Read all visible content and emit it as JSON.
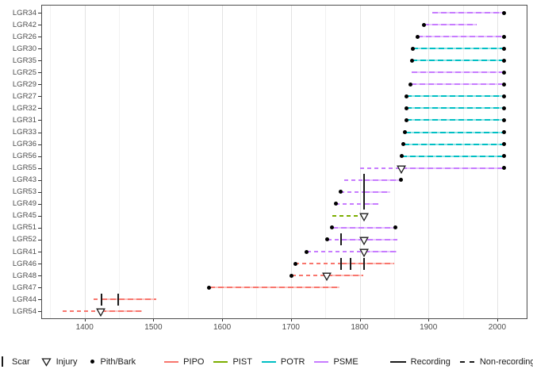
{
  "chart_data": {
    "type": "line",
    "subtype": "fire-history-demography-timeline",
    "title": "",
    "xlabel": "",
    "ylabel": "",
    "x_ticks": [
      1400,
      1500,
      1600,
      1700,
      1800,
      1900,
      2000
    ],
    "x_minor_ticks": [
      1350,
      1450,
      1550,
      1650,
      1750,
      1850,
      1950
    ],
    "xlim": [
      1337,
      2044
    ],
    "grid": true,
    "legend_position": "bottom",
    "species_colors": {
      "PIPO": "#F8766D",
      "PIST": "#7CAE00",
      "POTR": "#00BFC4",
      "PSME": "#C77CFF"
    },
    "marker_color": "#000000",
    "series": [
      {
        "id": "LGR34",
        "species": "PSME",
        "segments": [
          {
            "type": "recording",
            "start": 1905,
            "end": 2010
          }
        ],
        "pith": null,
        "bark": 2010,
        "scars": [],
        "injuries": []
      },
      {
        "id": "LGR42",
        "species": "PSME",
        "segments": [
          {
            "type": "recording",
            "start": 1893,
            "end": 1970
          }
        ],
        "pith": 1893,
        "bark": null,
        "scars": [],
        "injuries": []
      },
      {
        "id": "LGR26",
        "species": "PSME",
        "segments": [
          {
            "type": "recording",
            "start": 1884,
            "end": 2010
          }
        ],
        "pith": 1884,
        "bark": 2010,
        "scars": [],
        "injuries": []
      },
      {
        "id": "LGR30",
        "species": "POTR",
        "segments": [
          {
            "type": "recording",
            "start": 1877,
            "end": 2010
          }
        ],
        "pith": 1877,
        "bark": 2010,
        "scars": [],
        "injuries": []
      },
      {
        "id": "LGR35",
        "species": "POTR",
        "segments": [
          {
            "type": "recording",
            "start": 1876,
            "end": 2010
          }
        ],
        "pith": 1876,
        "bark": 2010,
        "scars": [],
        "injuries": []
      },
      {
        "id": "LGR25",
        "species": "PSME",
        "segments": [
          {
            "type": "recording",
            "start": 1876,
            "end": 2010
          }
        ],
        "pith": null,
        "bark": 2010,
        "scars": [],
        "injuries": []
      },
      {
        "id": "LGR29",
        "species": "PSME",
        "segments": [
          {
            "type": "recording",
            "start": 1874,
            "end": 2010
          }
        ],
        "pith": 1874,
        "bark": 2010,
        "scars": [],
        "injuries": []
      },
      {
        "id": "LGR27",
        "species": "POTR",
        "segments": [
          {
            "type": "recording",
            "start": 1868,
            "end": 2010
          }
        ],
        "pith": 1868,
        "bark": 2010,
        "scars": [],
        "injuries": []
      },
      {
        "id": "LGR32",
        "species": "POTR",
        "segments": [
          {
            "type": "recording",
            "start": 1868,
            "end": 2010
          }
        ],
        "pith": 1868,
        "bark": 2010,
        "scars": [],
        "injuries": []
      },
      {
        "id": "LGR31",
        "species": "POTR",
        "segments": [
          {
            "type": "recording",
            "start": 1868,
            "end": 2010
          }
        ],
        "pith": 1868,
        "bark": 2010,
        "scars": [],
        "injuries": []
      },
      {
        "id": "LGR33",
        "species": "POTR",
        "segments": [
          {
            "type": "recording",
            "start": 1866,
            "end": 2010
          }
        ],
        "pith": 1866,
        "bark": 2010,
        "scars": [],
        "injuries": []
      },
      {
        "id": "LGR36",
        "species": "POTR",
        "segments": [
          {
            "type": "recording",
            "start": 1864,
            "end": 2010
          }
        ],
        "pith": 1864,
        "bark": 2010,
        "scars": [],
        "injuries": []
      },
      {
        "id": "LGR56",
        "species": "POTR",
        "segments": [
          {
            "type": "recording",
            "start": 1861,
            "end": 2010
          }
        ],
        "pith": 1861,
        "bark": 2010,
        "scars": [],
        "injuries": []
      },
      {
        "id": "LGR55",
        "species": "PSME",
        "segments": [
          {
            "type": "non-recording",
            "start": 1800,
            "end": 1860
          },
          {
            "type": "recording",
            "start": 1860,
            "end": 2010
          }
        ],
        "pith": null,
        "bark": 2010,
        "scars": [],
        "injuries": [
          1860
        ]
      },
      {
        "id": "LGR43",
        "species": "PSME",
        "segments": [
          {
            "type": "non-recording",
            "start": 1777,
            "end": 1806
          },
          {
            "type": "recording",
            "start": 1806,
            "end": 1860
          }
        ],
        "pith": null,
        "bark": 1860,
        "scars": [
          1806
        ],
        "injuries": []
      },
      {
        "id": "LGR53",
        "species": "PSME",
        "segments": [
          {
            "type": "non-recording",
            "start": 1772,
            "end": 1806
          },
          {
            "type": "recording",
            "start": 1806,
            "end": 1844
          }
        ],
        "pith": 1772,
        "bark": null,
        "scars": [
          1806
        ],
        "injuries": []
      },
      {
        "id": "LGR49",
        "species": "PSME",
        "segments": [
          {
            "type": "non-recording",
            "start": 1765,
            "end": 1806
          },
          {
            "type": "recording",
            "start": 1806,
            "end": 1827
          }
        ],
        "pith": 1765,
        "bark": null,
        "scars": [
          1806
        ],
        "injuries": []
      },
      {
        "id": "LGR45",
        "species": "PIST",
        "segments": [
          {
            "type": "non-recording",
            "start": 1760,
            "end": 1806
          }
        ],
        "pith": null,
        "bark": null,
        "scars": [],
        "injuries": [
          1806
        ]
      },
      {
        "id": "LGR51",
        "species": "PSME",
        "segments": [
          {
            "type": "recording",
            "start": 1760,
            "end": 1852
          }
        ],
        "pith": 1760,
        "bark": 1852,
        "scars": [],
        "injuries": []
      },
      {
        "id": "LGR52",
        "species": "PSME",
        "segments": [
          {
            "type": "non-recording",
            "start": 1753,
            "end": 1773
          },
          {
            "type": "recording",
            "start": 1773,
            "end": 1855
          }
        ],
        "pith": 1753,
        "bark": null,
        "scars": [
          1773
        ],
        "injuries": [
          1806
        ]
      },
      {
        "id": "LGR41",
        "species": "PSME",
        "segments": [
          {
            "type": "non-recording",
            "start": 1723,
            "end": 1806
          },
          {
            "type": "recording",
            "start": 1806,
            "end": 1854
          }
        ],
        "pith": 1723,
        "bark": null,
        "scars": [],
        "injuries": [
          1806
        ]
      },
      {
        "id": "LGR46",
        "species": "PIPO",
        "segments": [
          {
            "type": "non-recording",
            "start": 1706,
            "end": 1773
          },
          {
            "type": "recording",
            "start": 1773,
            "end": 1850
          }
        ],
        "pith": 1706,
        "bark": null,
        "scars": [
          1773,
          1787,
          1806
        ],
        "injuries": []
      },
      {
        "id": "LGR48",
        "species": "PIPO",
        "segments": [
          {
            "type": "non-recording",
            "start": 1701,
            "end": 1752
          },
          {
            "type": "recording",
            "start": 1752,
            "end": 1805
          }
        ],
        "pith": 1701,
        "bark": null,
        "scars": [],
        "injuries": [
          1752
        ]
      },
      {
        "id": "LGR47",
        "species": "PIPO",
        "segments": [
          {
            "type": "recording",
            "start": 1581,
            "end": 1771
          }
        ],
        "pith": 1581,
        "bark": null,
        "scars": [],
        "injuries": []
      },
      {
        "id": "LGR44",
        "species": "PIPO",
        "segments": [
          {
            "type": "non-recording",
            "start": 1413,
            "end": 1425
          },
          {
            "type": "recording",
            "start": 1425,
            "end": 1504
          }
        ],
        "pith": null,
        "bark": null,
        "scars": [
          1425,
          1449
        ],
        "injuries": []
      },
      {
        "id": "LGR54",
        "species": "PIPO",
        "segments": [
          {
            "type": "non-recording",
            "start": 1368,
            "end": 1423
          },
          {
            "type": "recording",
            "start": 1423,
            "end": 1483
          }
        ],
        "pith": null,
        "bark": null,
        "scars": [],
        "injuries": [
          1423
        ]
      }
    ],
    "legend": {
      "shape_items": [
        {
          "label": "Scar",
          "symbol": "scar-tick"
        },
        {
          "label": "Injury",
          "symbol": "triangle-down-open"
        },
        {
          "label": "Pith/Bark",
          "symbol": "dot"
        }
      ],
      "color_items": [
        {
          "label": "PIPO",
          "color": "#F8766D"
        },
        {
          "label": "PIST",
          "color": "#7CAE00"
        },
        {
          "label": "POTR",
          "color": "#00BFC4"
        },
        {
          "label": "PSME",
          "color": "#C77CFF"
        }
      ],
      "linetype_items": [
        {
          "label": "Recording",
          "style": "solid"
        },
        {
          "label": "Non-recording",
          "style": "dashed"
        }
      ]
    }
  }
}
